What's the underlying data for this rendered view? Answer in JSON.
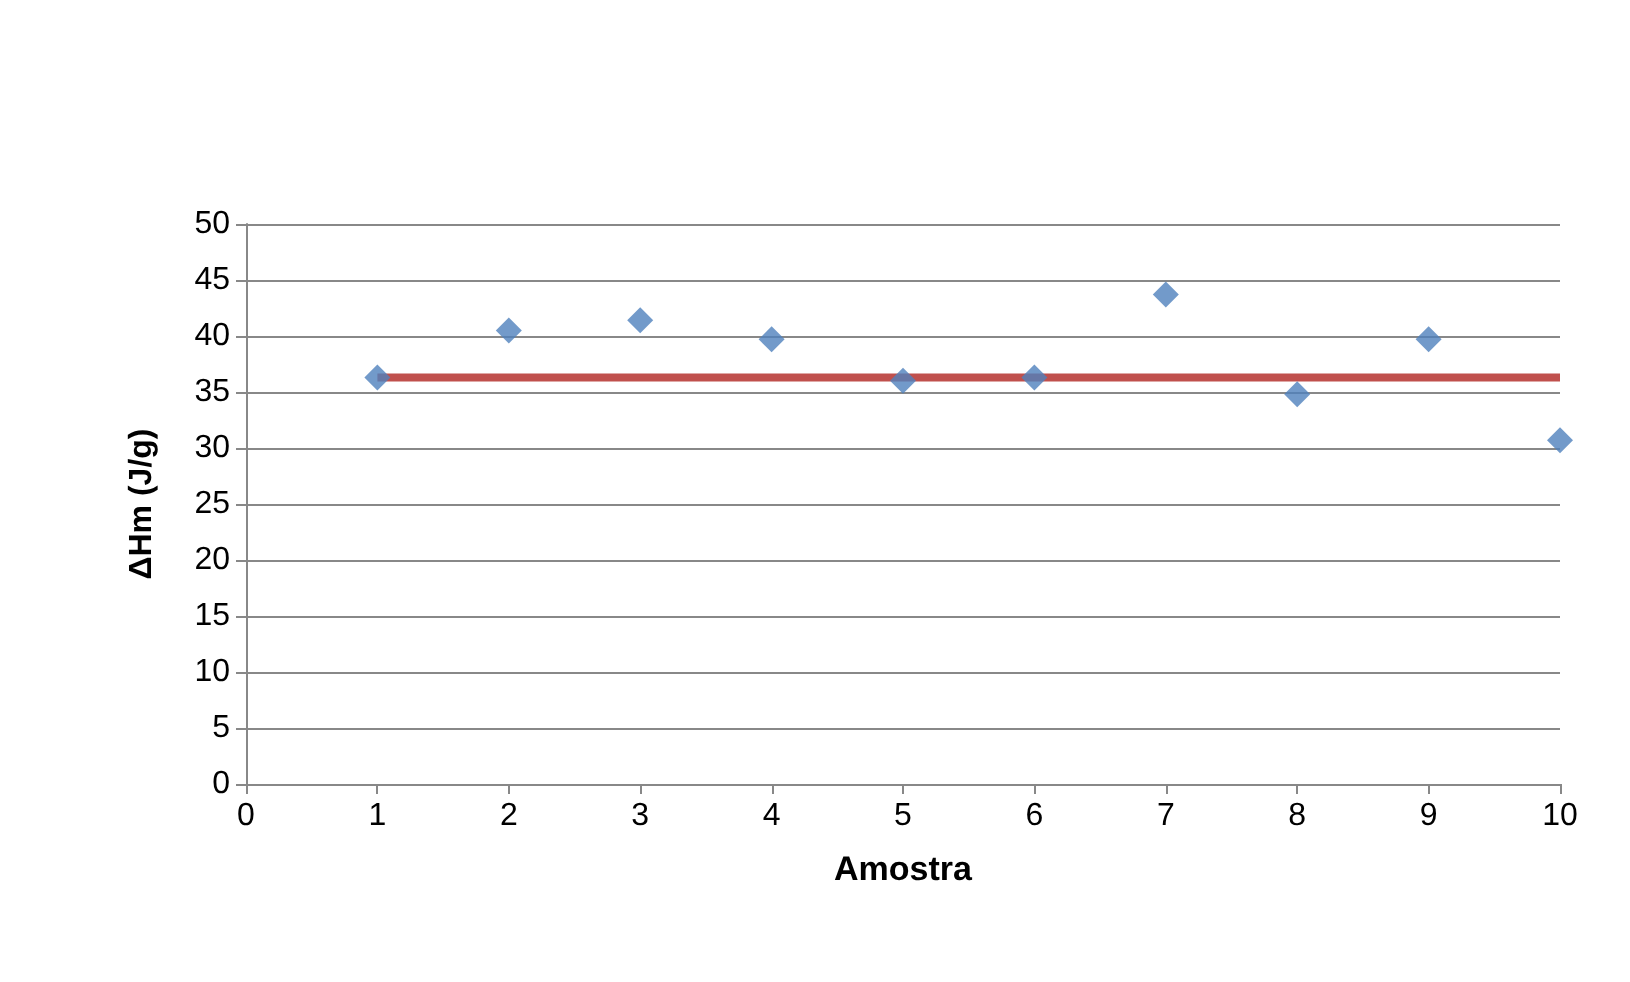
{
  "chart_data": {
    "type": "scatter",
    "xlabel": "Amostra",
    "ylabel": "ΔHm (J/g)",
    "x": [
      1,
      2,
      3,
      4,
      5,
      6,
      7,
      8,
      9,
      10
    ],
    "series": [
      {
        "color": "#4f81bd",
        "marker": "diamond",
        "values": [
          36.3,
          40.5,
          41.4,
          39.7,
          36.0,
          36.3,
          43.7,
          34.8,
          39.7,
          30.7
        ]
      },
      {
        "type": "line",
        "color": "#c0504d",
        "marker": "none",
        "x": [
          1,
          10
        ],
        "values": [
          36.3,
          36.3
        ]
      }
    ],
    "xlim": [
      0,
      10
    ],
    "xticks": [
      0,
      1,
      2,
      3,
      4,
      5,
      6,
      7,
      8,
      9,
      10
    ],
    "ylim": [
      0,
      50
    ],
    "yticks": [
      0,
      5,
      10,
      15,
      20,
      25,
      30,
      35,
      40,
      45,
      50
    ],
    "grid": "y",
    "line_style": "solid"
  }
}
